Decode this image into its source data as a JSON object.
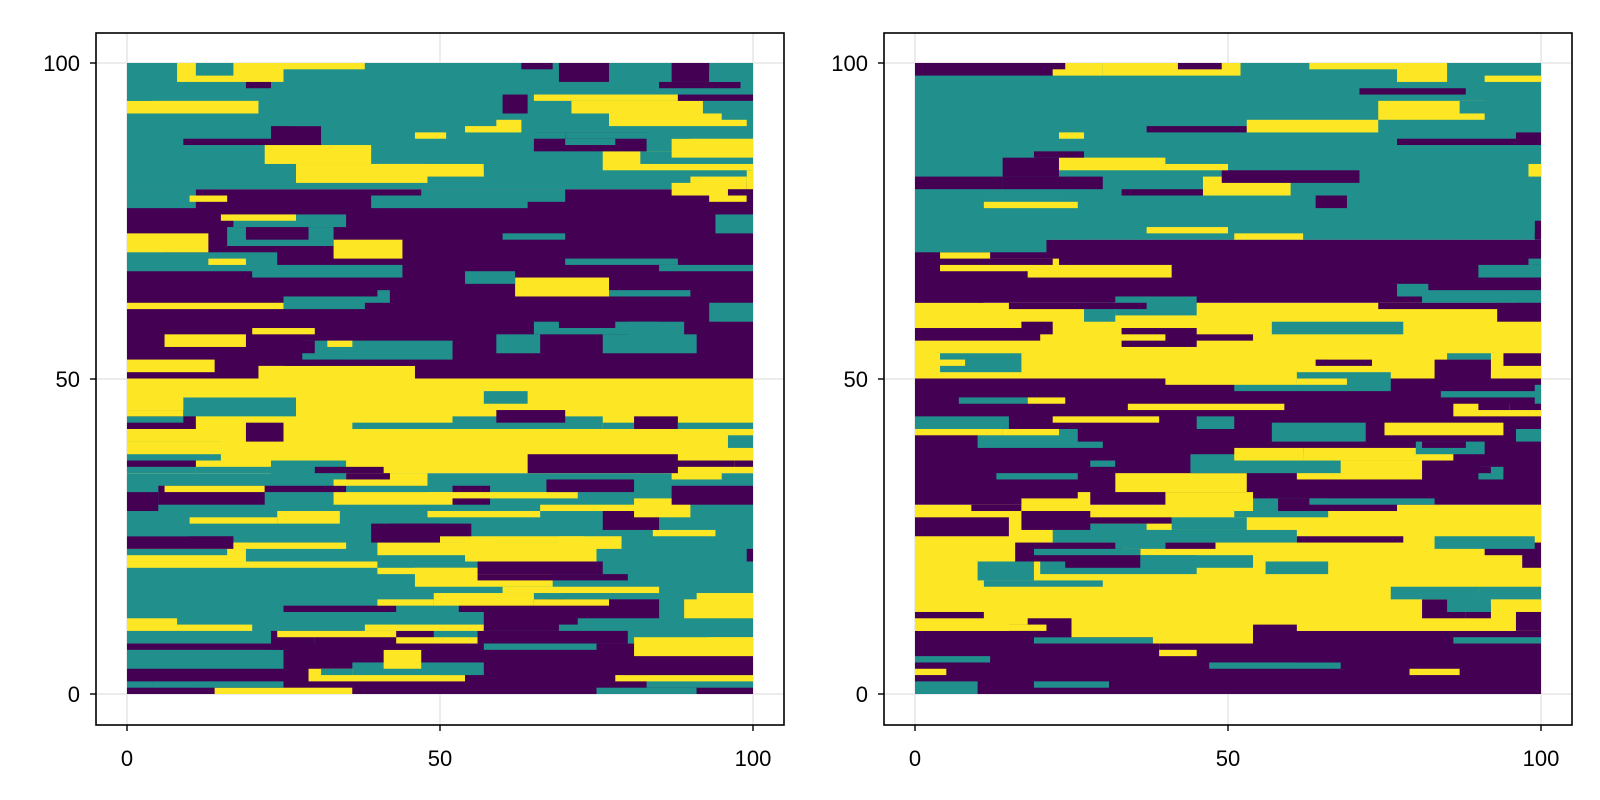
{
  "chart_data": [
    {
      "type": "heatmap",
      "panel": "left",
      "xlim": [
        -5,
        105
      ],
      "ylim": [
        -5,
        105
      ],
      "x_ticks": [
        "0",
        "50",
        "100"
      ],
      "y_ticks": [
        "0",
        "50",
        "100"
      ],
      "grid": true,
      "colormap": "viridis",
      "categories": [
        {
          "level": "low",
          "color": "#440154"
        },
        {
          "level": "mid",
          "color": "#21908d"
        },
        {
          "level": "high",
          "color": "#fde725"
        }
      ],
      "band_ranges": [
        [
          0,
          8
        ],
        [
          8,
          35
        ],
        [
          35,
          50
        ],
        [
          50,
          80
        ],
        [
          80,
          100
        ]
      ],
      "band_levels": [
        "low",
        "mid",
        "high",
        "low",
        "mid"
      ]
    },
    {
      "type": "heatmap",
      "panel": "right",
      "xlim": [
        -5,
        105
      ],
      "ylim": [
        -5,
        105
      ],
      "x_ticks": [
        "0",
        "50",
        "100"
      ],
      "y_ticks": [
        "0",
        "50",
        "100"
      ],
      "grid": true,
      "colormap": "viridis",
      "categories": [
        {
          "level": "low",
          "color": "#440154"
        },
        {
          "level": "mid",
          "color": "#21908d"
        },
        {
          "level": "high",
          "color": "#fde725"
        }
      ],
      "band_ranges": [
        [
          0,
          10
        ],
        [
          10,
          30
        ],
        [
          30,
          50
        ],
        [
          50,
          62
        ],
        [
          62,
          72
        ],
        [
          72,
          100
        ]
      ],
      "band_levels": [
        "low",
        "high",
        "low",
        "high",
        "low",
        "mid"
      ]
    }
  ]
}
